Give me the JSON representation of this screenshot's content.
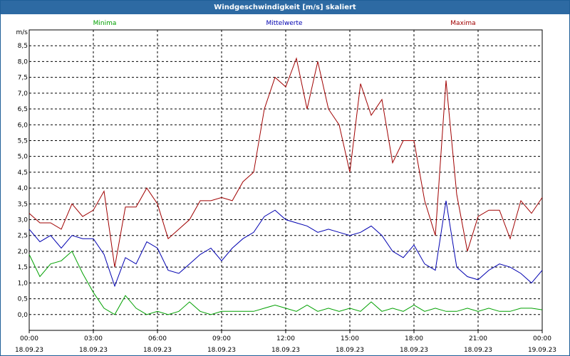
{
  "window": {
    "title": "Windgeschwindigkeit [m/s] skaliert"
  },
  "chart_data": {
    "type": "line",
    "ylabel": "m/s",
    "ylim": [
      -0.5,
      9.0
    ],
    "yticks": [
      "0,0",
      "0,5",
      "1,0",
      "1,5",
      "2,0",
      "2,5",
      "3,0",
      "3,5",
      "4,0",
      "4,5",
      "5,0",
      "5,5",
      "6,0",
      "6,5",
      "7,0",
      "7,5",
      "8,0",
      "8,5"
    ],
    "ytick_values": [
      0,
      0.5,
      1,
      1.5,
      2,
      2.5,
      3,
      3.5,
      4,
      4.5,
      5,
      5.5,
      6,
      6.5,
      7,
      7.5,
      8,
      8.5
    ],
    "xlim": [
      0,
      24
    ],
    "xticks": [
      {
        "time": "00:00",
        "date": "18.09.23"
      },
      {
        "time": "03:00",
        "date": "18.09.23"
      },
      {
        "time": "06:00",
        "date": "18.09.23"
      },
      {
        "time": "09:00",
        "date": "18.09.23"
      },
      {
        "time": "12:00",
        "date": "18.09.23"
      },
      {
        "time": "15:00",
        "date": "18.09.23"
      },
      {
        "time": "18:00",
        "date": "18.09.23"
      },
      {
        "time": "21:00",
        "date": "18.09.23"
      },
      {
        "time": "00:00",
        "date": "19.09.23"
      }
    ],
    "grid": true,
    "legend_position": "top",
    "x": [
      0,
      0.5,
      1,
      1.5,
      2,
      2.5,
      3,
      3.5,
      4,
      4.5,
      5,
      5.5,
      6,
      6.5,
      7,
      7.5,
      8,
      8.5,
      9,
      9.5,
      10,
      10.5,
      11,
      11.5,
      12,
      12.5,
      13,
      13.5,
      14,
      14.5,
      15,
      15.5,
      16,
      16.5,
      17,
      17.5,
      18,
      18.5,
      19,
      19.5,
      20,
      20.5,
      21,
      21.5,
      22,
      22.5,
      23,
      23.5,
      24
    ],
    "series": [
      {
        "name": "Minima",
        "color": "#00a000",
        "values": [
          1.9,
          1.2,
          1.6,
          1.7,
          2.0,
          1.3,
          0.7,
          0.2,
          0.0,
          0.6,
          0.2,
          0.0,
          0.1,
          0.0,
          0.1,
          0.4,
          0.1,
          0.0,
          0.1,
          0.1,
          0.1,
          0.1,
          0.2,
          0.3,
          0.2,
          0.1,
          0.3,
          0.1,
          0.2,
          0.1,
          0.2,
          0.1,
          0.4,
          0.1,
          0.2,
          0.1,
          0.3,
          0.1,
          0.2,
          0.1,
          0.1,
          0.2,
          0.1,
          0.2,
          0.1,
          0.1,
          0.2,
          0.2,
          0.15
        ]
      },
      {
        "name": "Mittelwerte",
        "color": "#0000b0",
        "values": [
          2.7,
          2.3,
          2.5,
          2.1,
          2.5,
          2.4,
          2.4,
          1.9,
          0.9,
          1.8,
          1.6,
          2.3,
          2.1,
          1.4,
          1.3,
          1.6,
          1.9,
          2.1,
          1.7,
          2.1,
          2.4,
          2.6,
          3.1,
          3.3,
          3.0,
          2.9,
          2.8,
          2.6,
          2.7,
          2.6,
          2.5,
          2.6,
          2.8,
          2.5,
          2.0,
          1.8,
          2.2,
          1.6,
          1.4,
          3.6,
          1.5,
          1.2,
          1.1,
          1.4,
          1.6,
          1.5,
          1.3,
          1.0,
          1.4
        ]
      },
      {
        "name": "Maxima",
        "color": "#a00000",
        "values": [
          3.2,
          2.9,
          2.9,
          2.7,
          3.5,
          3.1,
          3.3,
          3.9,
          1.5,
          3.4,
          3.4,
          4.0,
          3.5,
          2.4,
          2.7,
          3.0,
          3.6,
          3.6,
          3.7,
          3.6,
          4.2,
          4.5,
          6.5,
          7.5,
          7.2,
          8.1,
          6.5,
          8.0,
          6.5,
          6.0,
          4.5,
          7.3,
          6.3,
          6.8,
          4.8,
          5.5,
          5.5,
          3.6,
          2.5,
          7.4,
          3.8,
          2.0,
          3.1,
          3.3,
          3.3,
          2.4,
          3.6,
          3.2,
          3.7
        ]
      }
    ]
  }
}
